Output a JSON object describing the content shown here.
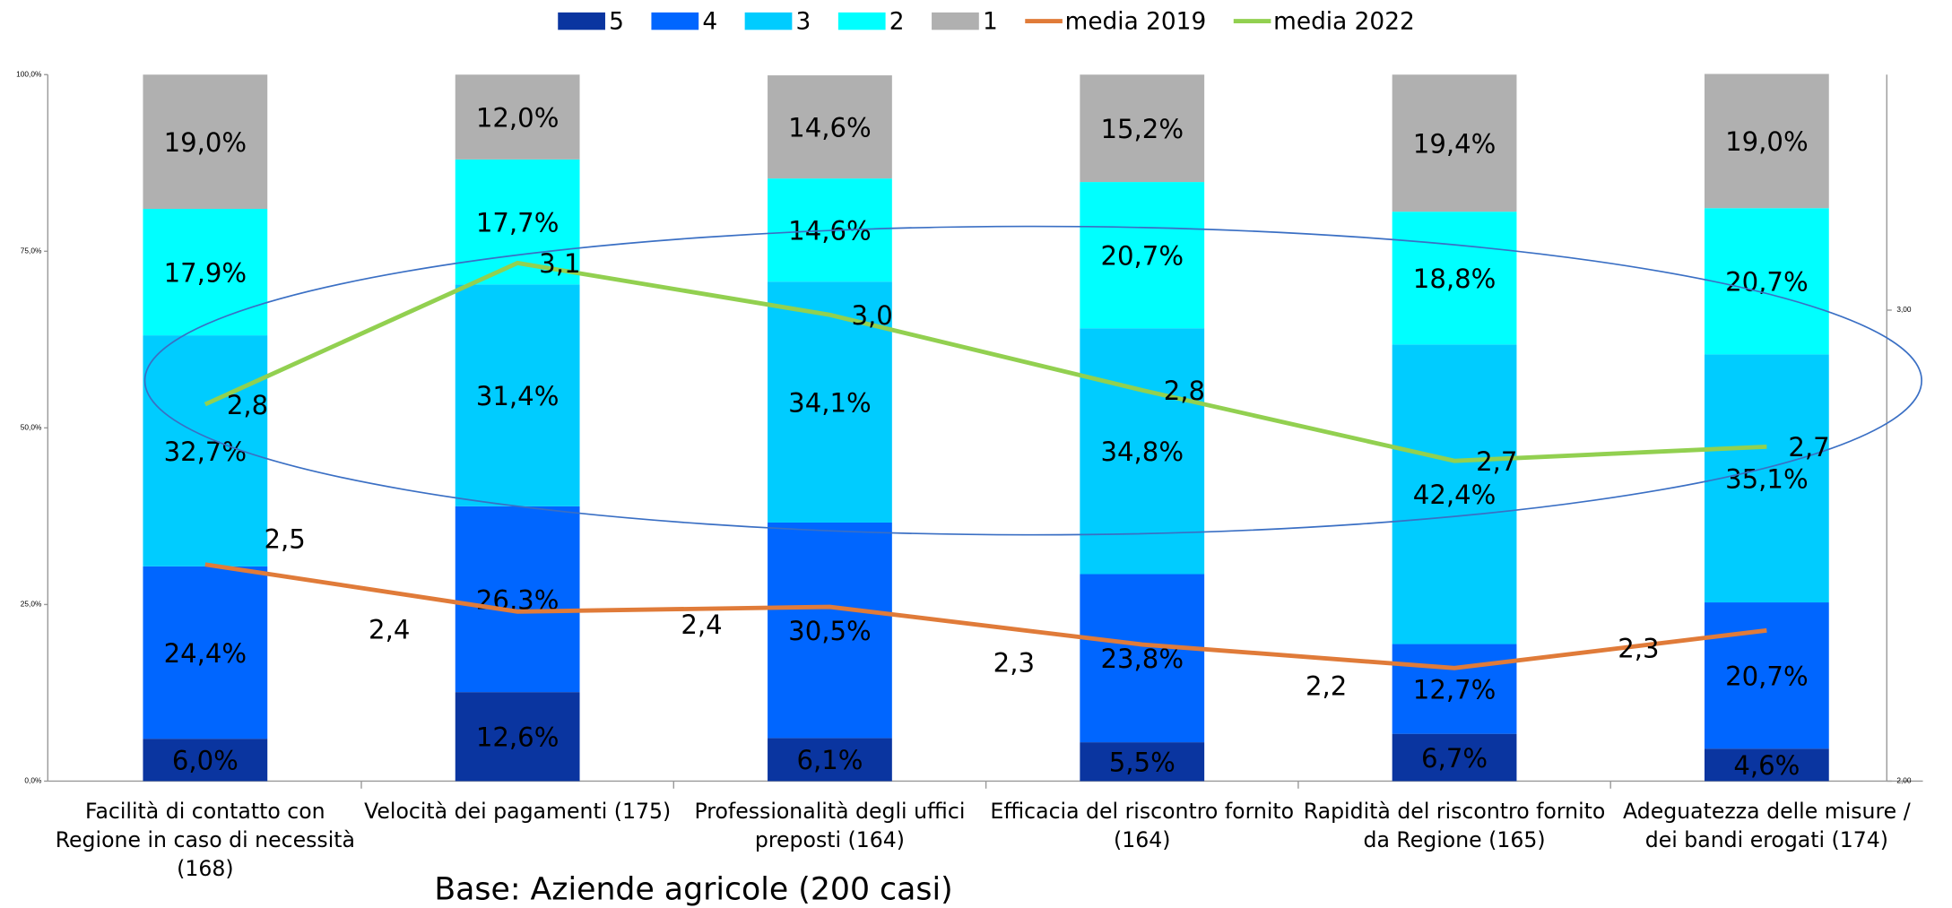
{
  "chart_data": {
    "type": "stacked-bar-line",
    "note": "Base: Aziende agricole (200 casi)",
    "categories": [
      "Facilità di contatto con Regione in caso di necessità (168)",
      "Velocità dei pagamenti (175)",
      "Professionalità degli uffici preposti (164)",
      "Efficacia del riscontro fornito (164)",
      "Rapidità del riscontro fornito da Regione (165)",
      "Adeguatezza delle misure / dei bandi erogati (174)"
    ],
    "series": [
      {
        "name": "5",
        "color": "#0a35a0",
        "values": [
          6.0,
          12.6,
          6.1,
          5.5,
          6.7,
          4.6
        ],
        "value_labels": [
          "6,0%",
          "12,6%",
          "6,1%",
          "5,5%",
          "6,7%",
          "4,6%"
        ]
      },
      {
        "name": "4",
        "color": "#0066ff",
        "values": [
          24.4,
          26.3,
          30.5,
          23.8,
          12.7,
          20.7
        ],
        "value_labels": [
          "24,4%",
          "26,3%",
          "30,5%",
          "23,8%",
          "12,7%",
          "20,7%"
        ]
      },
      {
        "name": "3",
        "color": "#00ccff",
        "values": [
          32.7,
          31.4,
          34.1,
          34.8,
          42.4,
          35.1
        ],
        "value_labels": [
          "32,7%",
          "31,4%",
          "34,1%",
          "34,8%",
          "42,4%",
          "35,1%"
        ]
      },
      {
        "name": "2",
        "color": "#00ffff",
        "values": [
          17.9,
          17.7,
          14.6,
          20.7,
          18.8,
          20.7
        ],
        "value_labels": [
          "17,9%",
          "17,7%",
          "14,6%",
          "20,7%",
          "18,8%",
          "20,7%"
        ]
      },
      {
        "name": "1",
        "color": "#b0b0b0",
        "values": [
          19.0,
          12.0,
          14.6,
          15.2,
          19.4,
          19.0
        ],
        "value_labels": [
          "19,0%",
          "12,0%",
          "14,6%",
          "15,2%",
          "19,4%",
          "19,0%"
        ]
      },
      {
        "name": "media 2019",
        "color": "#e07b39",
        "axis": "y2",
        "type": "line",
        "values": [
          2.46,
          2.36,
          2.37,
          2.29,
          2.24,
          2.32
        ],
        "value_labels": [
          "2,5",
          "2,4",
          "2,4",
          "2,3",
          "2,2",
          "2,3"
        ]
      },
      {
        "name": "media 2022",
        "color": "#92d050",
        "axis": "y2",
        "type": "line",
        "values": [
          2.8,
          3.1,
          2.99,
          2.83,
          2.68,
          2.71
        ],
        "value_labels": [
          "2,8",
          "3,1",
          "3,0",
          "2,8",
          "2,7",
          "2,7"
        ]
      }
    ],
    "ylim": [
      0,
      100
    ],
    "yticks": [
      {
        "value": 0,
        "label": "0,0%"
      },
      {
        "value": 25,
        "label": "25,0%"
      },
      {
        "value": 50,
        "label": "50,0%"
      },
      {
        "value": 75,
        "label": "75,0%"
      },
      {
        "value": 100,
        "label": "100,0%"
      }
    ],
    "y2lim": [
      2,
      3.5
    ],
    "y2ticks": [
      {
        "value": 2,
        "label": "2,00"
      },
      {
        "value": 3,
        "label": "3,00"
      }
    ],
    "legend": "top"
  }
}
